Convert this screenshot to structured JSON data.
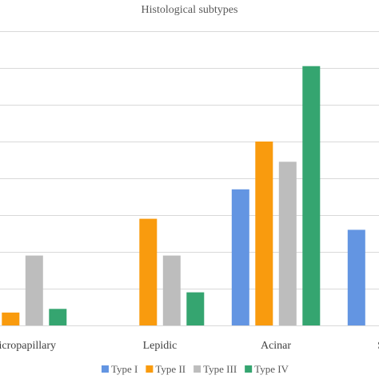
{
  "chart_data": {
    "type": "bar",
    "title": "Histological subtypes",
    "xlabel": "",
    "ylabel": "",
    "categories": [
      "Micropapillary",
      "Lepidic",
      "Acinar",
      "S"
    ],
    "series": [
      {
        "name": "Type I",
        "color": "#6395e2",
        "values": [
          0,
          0,
          37,
          26
        ]
      },
      {
        "name": "Type II",
        "color": "#f99b0e",
        "values": [
          3.5,
          29,
          50,
          null
        ]
      },
      {
        "name": "Type III",
        "color": "#bdbdbd",
        "values": [
          19,
          19,
          44.5,
          null
        ]
      },
      {
        "name": "Type IV",
        "color": "#35a570",
        "values": [
          4.5,
          9,
          70.5,
          null
        ]
      }
    ],
    "ylim": [
      0,
      80
    ],
    "yticks": [
      0,
      10,
      20,
      30,
      40,
      50,
      60,
      70,
      80
    ],
    "grid": true,
    "legend_position": "bottom",
    "gridline_color": "#d9d9d9"
  }
}
